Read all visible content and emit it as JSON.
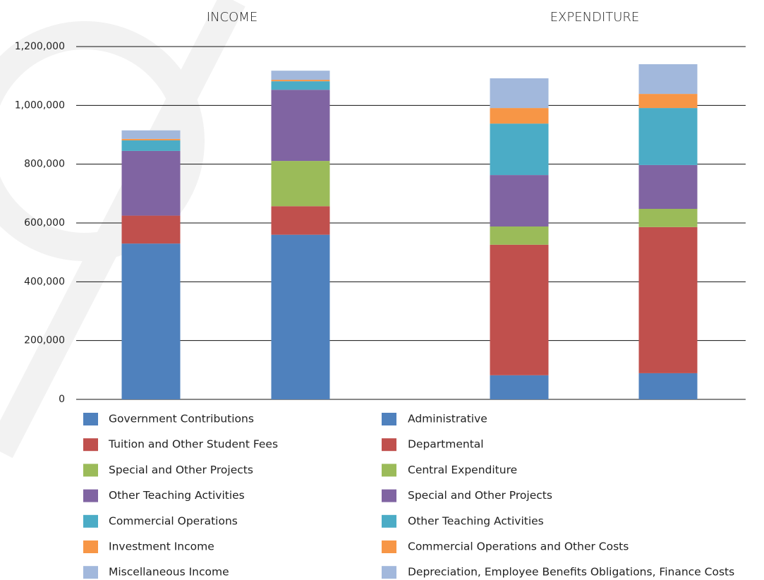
{
  "chart_data": [
    {
      "type": "bar",
      "stacked": true,
      "title": "INCOME",
      "categories": [
        null,
        null
      ],
      "ylim": [
        0,
        1200000
      ],
      "yticks": [
        0,
        {
          "value": 200000,
          "label": "200,000"
        },
        {
          "value": 400000,
          "label": "400,000"
        },
        {
          "value": 600000,
          "label": "600,000"
        },
        {
          "value": 800000,
          "label": "800,000"
        },
        {
          "value": 1000000,
          "label": "1,000,000"
        },
        {
          "value": 1200000,
          "label": "1,200,000"
        }
      ],
      "grid": true,
      "series": [
        {
          "name": "Government Contributions",
          "color": "#4f81bd",
          "values": [
            530000,
            560000
          ]
        },
        {
          "name": "Tuition and Other Student Fees",
          "color": "#c0504d",
          "values": [
            95000,
            97000
          ]
        },
        {
          "name": "Special and Other  Projects",
          "color": "#9bbb59",
          "values": [
            0,
            154000
          ]
        },
        {
          "name": "Other Teaching Activities",
          "color": "#8064a2",
          "values": [
            220000,
            242000
          ]
        },
        {
          "name": "Commercial Operations",
          "color": "#4bacc6",
          "values": [
            36000,
            29000
          ]
        },
        {
          "name": "Investment Income",
          "color": "#f79646",
          "values": [
            5000,
            5000
          ]
        },
        {
          "name": "Miscellaneous Income",
          "color": "#a2b8dc",
          "values": [
            29000,
            31000
          ]
        }
      ]
    },
    {
      "type": "bar",
      "stacked": true,
      "title": "EXPENDITURE",
      "categories": [
        null,
        null
      ],
      "ylim": [
        0,
        1200000
      ],
      "series": [
        {
          "name": "Administrative",
          "color": "#4f81bd",
          "values": [
            82000,
            89000
          ]
        },
        {
          "name": "Departmental",
          "color": "#c0504d",
          "values": [
            444000,
            497000
          ]
        },
        {
          "name": "Central Expenditure",
          "color": "#9bbb59",
          "values": [
            62000,
            62000
          ]
        },
        {
          "name": "Special and Other Projects",
          "color": "#8064a2",
          "values": [
            175000,
            149000
          ]
        },
        {
          "name": "Other Teaching Activities",
          "color": "#4bacc6",
          "values": [
            175000,
            194000
          ]
        },
        {
          "name": "Commercial Operations and Other Costs",
          "color": "#f79646",
          "values": [
            53000,
            48000
          ]
        },
        {
          "name": "Depreciation, Employee Benefits Obligations, Finance Costs",
          "color": "#a2b8dc",
          "values": [
            101000,
            101000
          ]
        }
      ]
    }
  ]
}
